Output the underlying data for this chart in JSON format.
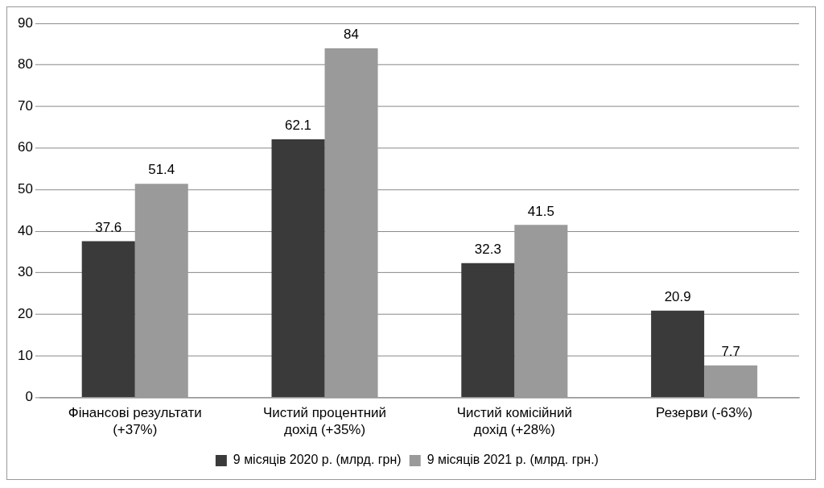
{
  "chart_data": {
    "type": "bar",
    "categories": [
      "Фінансові результати (+37%)",
      "Чистий процентний дохід (+35%)",
      "Чистий комісійний дохід (+28%)",
      "Резерви (-63%)"
    ],
    "series": [
      {
        "name": "9 місяців 2020 р. (млрд. грн)",
        "color": "#3a3a3a",
        "values": [
          37.6,
          62.1,
          32.3,
          20.9
        ]
      },
      {
        "name": "9 місяців 2021 р. (млрд. грн.)",
        "color": "#9a9a9a",
        "values": [
          51.4,
          84,
          41.5,
          7.7
        ]
      }
    ],
    "ylim": [
      0,
      90
    ],
    "yticks": [
      0,
      10,
      20,
      30,
      40,
      50,
      60,
      70,
      80,
      90
    ],
    "grid": "y",
    "legend": "bottom",
    "data_labels": true
  }
}
